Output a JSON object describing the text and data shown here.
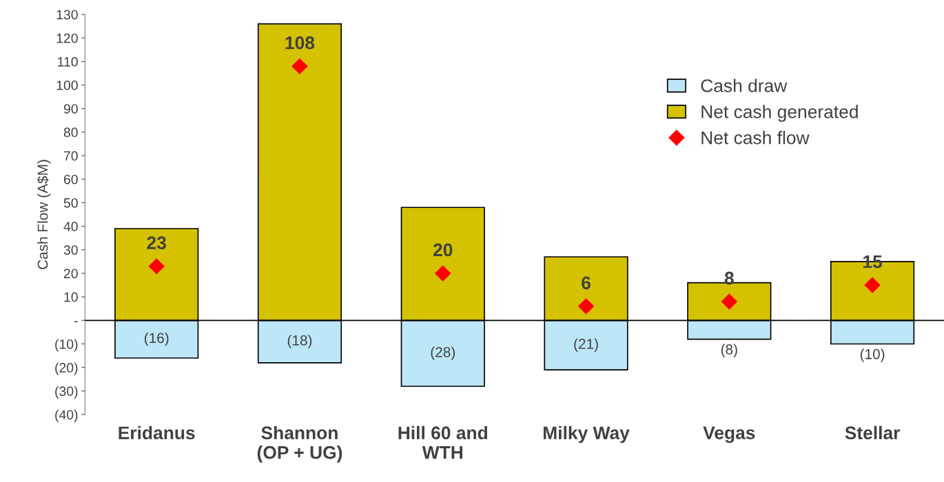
{
  "chart_data": {
    "type": "bar",
    "ylabel": "Cash Flow (A$M)",
    "categories": [
      "Eridanus",
      "Shannon\n(OP + UG)",
      "Hill 60 and\nWTH",
      "Milky Way",
      "Vegas",
      "Stellar"
    ],
    "series": [
      {
        "name": "Cash draw",
        "color": "#bde6f7",
        "values": [
          -16,
          -18,
          -28,
          -21,
          -8,
          -10
        ],
        "value_labels": [
          "(16)",
          "(18)",
          "(28)",
          "(21)",
          "(8)",
          "(10)"
        ]
      },
      {
        "name": "Net cash generated",
        "color": "#d4c200",
        "values": [
          39,
          126,
          48,
          27,
          16,
          25
        ]
      },
      {
        "name": "Net cash flow",
        "type": "scatter",
        "color": "#ff0000",
        "marker": "diamond",
        "x": [
          "Eridanus",
          "Shannon\n(OP + UG)",
          "Hill 60 and\nWTH",
          "Milky Way",
          "Vegas",
          "Stellar"
        ],
        "values": [
          23,
          108,
          20,
          6,
          8,
          15
        ],
        "value_labels": [
          "23",
          "108",
          "20",
          "6",
          "8",
          "15"
        ]
      }
    ],
    "stacked": true,
    "ylim": [
      -40,
      130
    ],
    "yticks": [
      {
        "value": -40,
        "label": "(40)"
      },
      {
        "value": -30,
        "label": "(30)"
      },
      {
        "value": -20,
        "label": "(20)"
      },
      {
        "value": -10,
        "label": "(10)"
      },
      {
        "value": 0,
        "label": "-"
      },
      10,
      20,
      30,
      40,
      50,
      60,
      70,
      80,
      90,
      100,
      110,
      120,
      130
    ],
    "ref_lines": [
      {
        "axis": "y",
        "value": 0,
        "color": "#000000"
      }
    ],
    "legend": "top right",
    "grid": false
  }
}
